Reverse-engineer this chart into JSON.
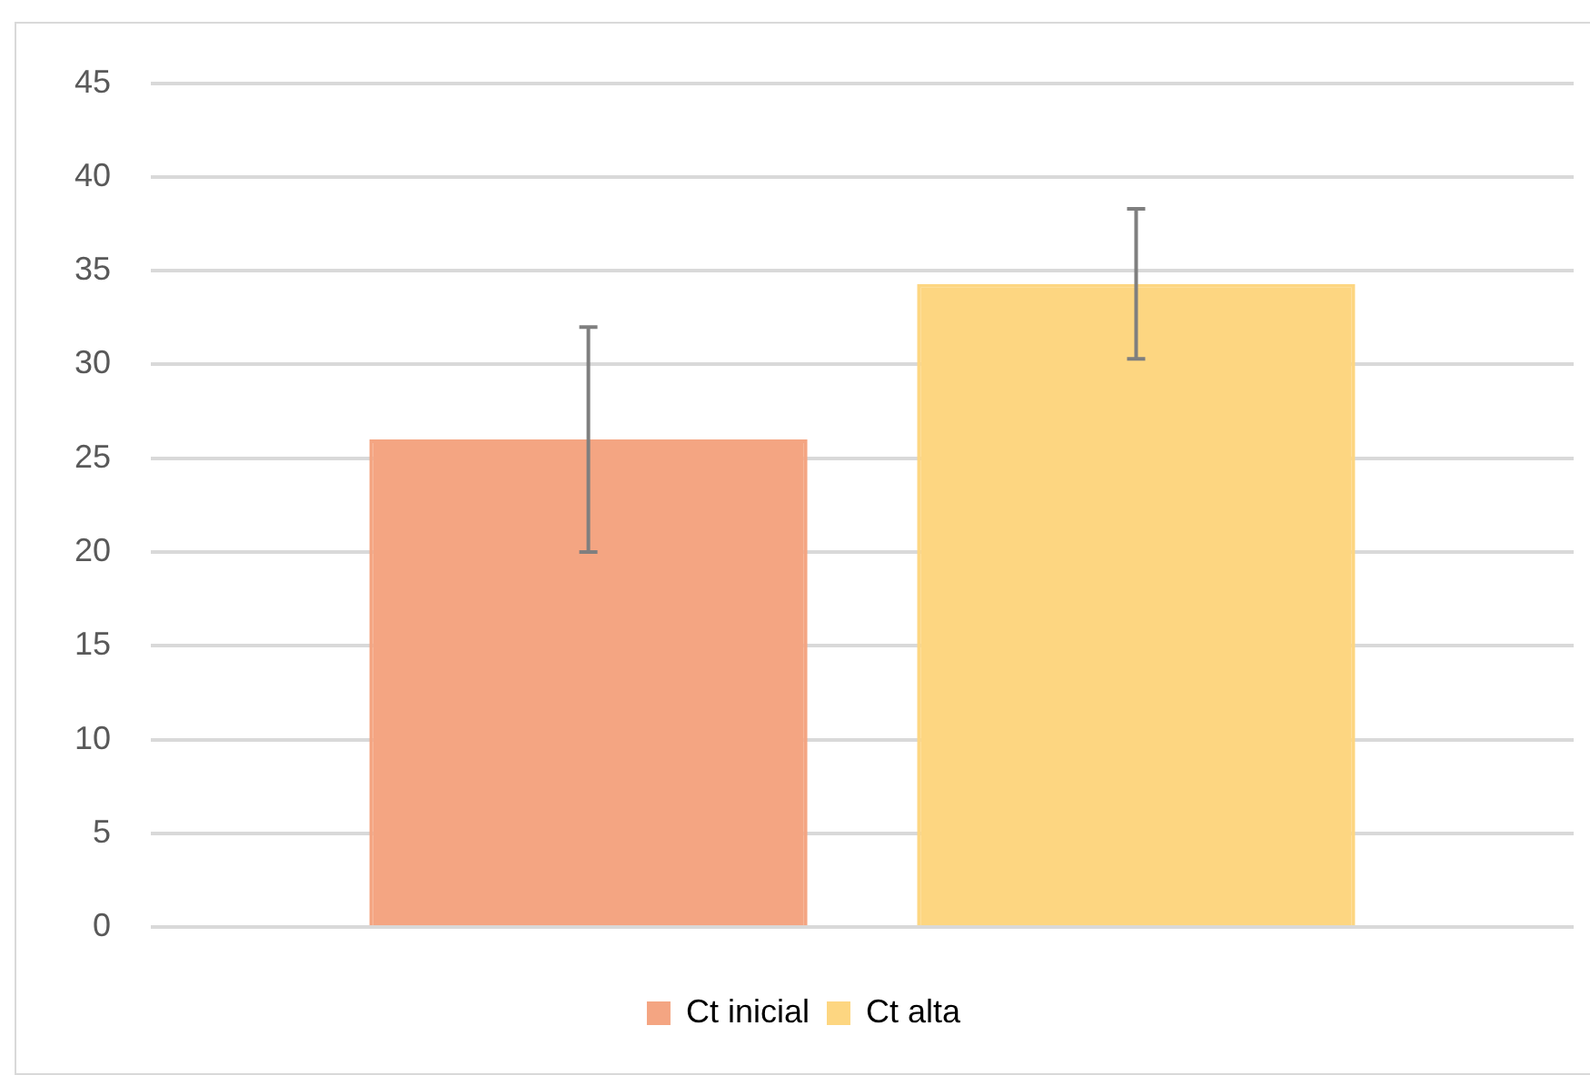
{
  "chart_data": {
    "type": "bar",
    "categories": [
      null
    ],
    "series": [
      {
        "name": "Ct inicial",
        "color": "#f4a582",
        "values": [
          26.0
        ],
        "errors": [
          6.0
        ]
      },
      {
        "name": "Ct alta",
        "color": "#fdd681",
        "values": [
          34.3
        ],
        "errors": [
          4.0
        ]
      }
    ],
    "ylim": [
      0,
      45
    ],
    "yticks": [
      0,
      5,
      10,
      15,
      20,
      25,
      30,
      35,
      40,
      45
    ],
    "grid": "y",
    "legend": "bottom"
  }
}
